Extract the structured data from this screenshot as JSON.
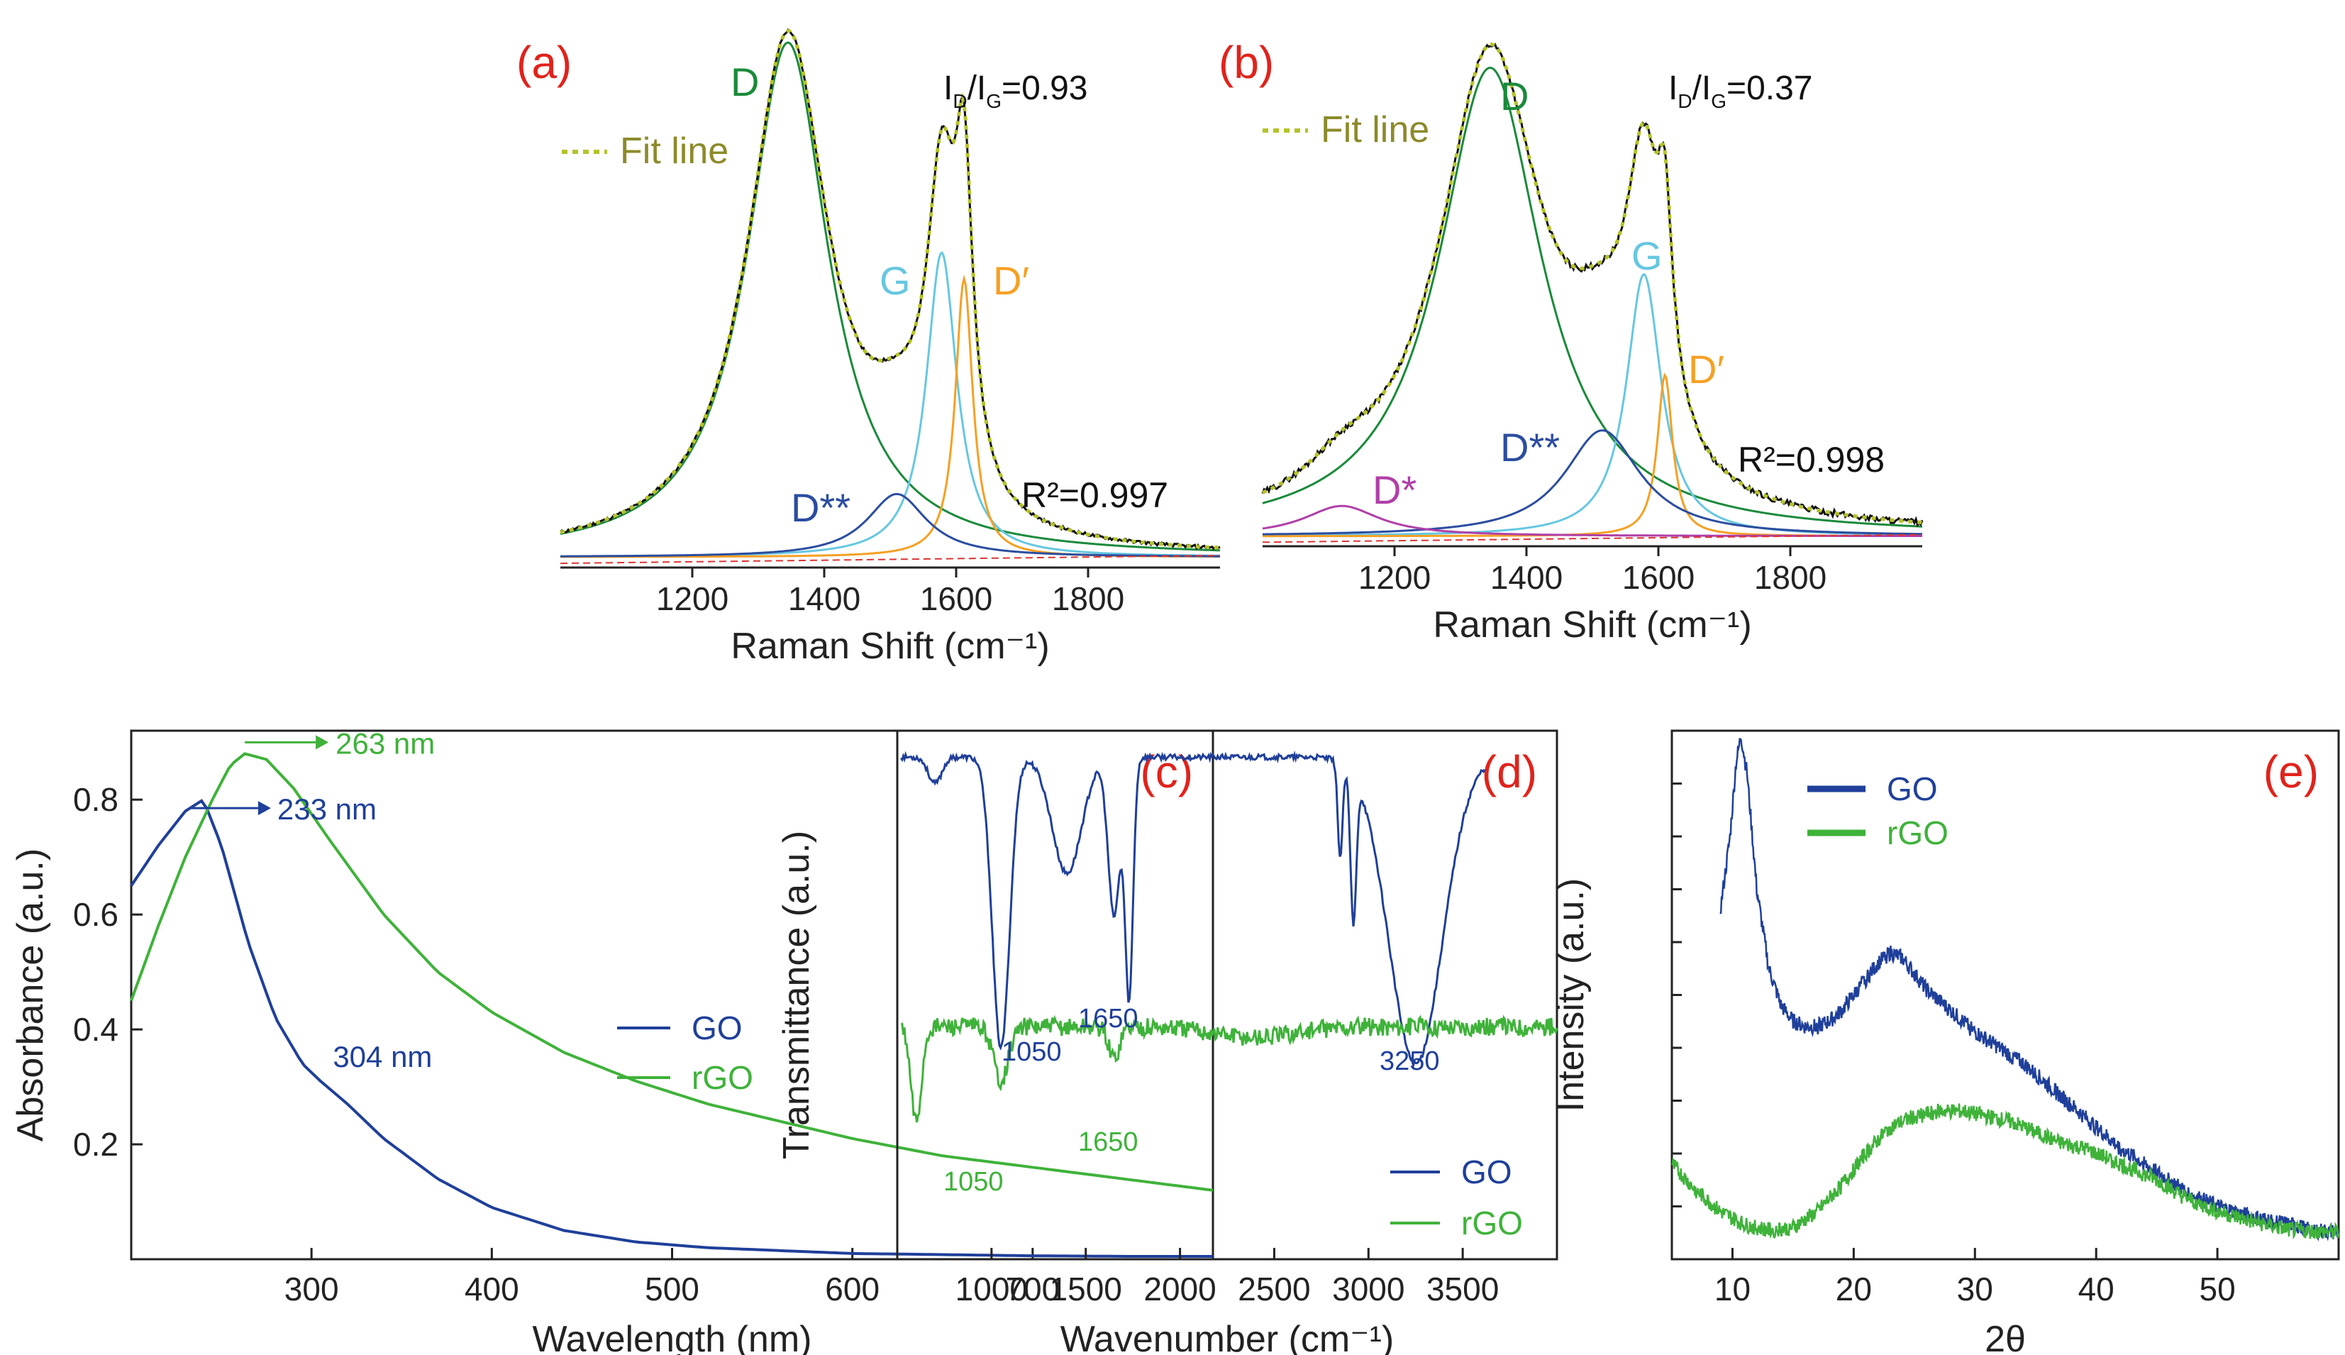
{
  "chart_data": [
    {
      "id": "a",
      "type": "line",
      "panel_label": "(a)",
      "xlabel": "Raman Shift (cm⁻¹)",
      "xlim": [
        1000,
        2000
      ],
      "xticks": [
        1200,
        1400,
        1600,
        1800
      ],
      "ylabel": "",
      "ylim": [
        0,
        1.0
      ],
      "legend": [
        {
          "name": "Fit line",
          "style": "dotted",
          "color": "#b5c22a"
        }
      ],
      "annotations": {
        "ratio": "I",
        "ratio_sub1": "D",
        "ratio_mid": "/I",
        "ratio_sub2": "G",
        "ratio_val": "=0.93",
        "r2": "R²=0.997"
      },
      "background": 0.02,
      "peaks": [
        {
          "name": "D",
          "center": 1345,
          "height": 0.98,
          "width": 75,
          "color": "#1a8a3a"
        },
        {
          "name": "G",
          "center": 1578,
          "height": 0.58,
          "width": 28,
          "color": "#66c7e0"
        },
        {
          "name": "D′",
          "center": 1612,
          "height": 0.53,
          "width": 16,
          "color": "#f5a024"
        },
        {
          "name": "D**",
          "center": 1510,
          "height": 0.12,
          "width": 55,
          "color": "#2b4da0"
        }
      ]
    },
    {
      "id": "b",
      "type": "line",
      "panel_label": "(b)",
      "xlabel": "Raman Shift (cm⁻¹)",
      "xlim": [
        1000,
        2000
      ],
      "xticks": [
        1200,
        1400,
        1600,
        1800
      ],
      "ylabel": "",
      "ylim": [
        0,
        1.0
      ],
      "legend": [
        {
          "name": "Fit line",
          "style": "dotted",
          "color": "#b5c22a"
        }
      ],
      "annotations": {
        "ratio": "I",
        "ratio_sub1": "D",
        "ratio_mid": "/I",
        "ratio_sub2": "G",
        "ratio_val": "=0.37",
        "r2": "R²=0.998"
      },
      "background": 0.02,
      "peaks": [
        {
          "name": "D",
          "center": 1345,
          "height": 0.93,
          "width": 95,
          "color": "#1a8a3a"
        },
        {
          "name": "G",
          "center": 1578,
          "height": 0.52,
          "width": 32,
          "color": "#66c7e0"
        },
        {
          "name": "D′",
          "center": 1610,
          "height": 0.32,
          "width": 14,
          "color": "#f5a024"
        },
        {
          "name": "D**",
          "center": 1515,
          "height": 0.21,
          "width": 70,
          "color": "#2b4da0"
        },
        {
          "name": "D*",
          "center": 1120,
          "height": 0.06,
          "width": 70,
          "color": "#b03fa8"
        }
      ]
    },
    {
      "id": "c",
      "type": "line",
      "panel_label": "(c)",
      "xlabel": "Wavelength (nm)",
      "ylabel": "Absorbance (a.u.)",
      "xlim": [
        200,
        800
      ],
      "ylim": [
        0,
        0.92
      ],
      "xticks": [
        300,
        400,
        500,
        600,
        700
      ],
      "yticks": [
        0.2,
        0.4,
        0.6,
        0.8
      ],
      "series": [
        {
          "name": "GO",
          "color": "#1f3f9a",
          "x": [
            200,
            215,
            230,
            240,
            250,
            265,
            280,
            295,
            305,
            320,
            340,
            370,
            400,
            440,
            480,
            520,
            560,
            600,
            650,
            700,
            750,
            800
          ],
          "y": [
            0.65,
            0.72,
            0.78,
            0.8,
            0.72,
            0.55,
            0.42,
            0.34,
            0.31,
            0.27,
            0.21,
            0.14,
            0.09,
            0.05,
            0.03,
            0.02,
            0.015,
            0.01,
            0.008,
            0.006,
            0.005,
            0.005
          ]
        },
        {
          "name": "rGO",
          "color": "#3fb23a",
          "x": [
            200,
            215,
            230,
            245,
            255,
            263,
            275,
            290,
            310,
            340,
            370,
            400,
            440,
            480,
            520,
            560,
            600,
            650,
            700,
            750,
            800
          ],
          "y": [
            0.45,
            0.58,
            0.7,
            0.8,
            0.86,
            0.88,
            0.87,
            0.82,
            0.73,
            0.6,
            0.5,
            0.43,
            0.36,
            0.31,
            0.27,
            0.24,
            0.21,
            0.18,
            0.16,
            0.14,
            0.12
          ]
        }
      ],
      "annotations": [
        {
          "text": "263 nm",
          "x": 263,
          "y": 0.88,
          "color": "#3fb23a"
        },
        {
          "text": "233 nm",
          "x": 233,
          "y": 0.8,
          "color": "#1f3f9a"
        },
        {
          "text": "304 nm",
          "x": 304,
          "y": 0.31,
          "color": "#1f3f9a"
        }
      ]
    },
    {
      "id": "d",
      "type": "line",
      "panel_label": "(d)",
      "xlabel": "Wavenumber (cm⁻¹)",
      "ylabel": "Transmittance (a.u.)",
      "xlim": [
        500,
        4000
      ],
      "ylim": [
        0,
        1.0
      ],
      "xticks": [
        1000,
        1500,
        2000,
        2500,
        3000,
        3500
      ],
      "series": [
        {
          "name": "GO",
          "color": "#1f3f9a",
          "baseline": 0.95,
          "dips": [
            [
              1050,
              0.55,
              65
            ],
            [
              1400,
              0.22,
              110
            ],
            [
              1730,
              0.45,
              30
            ],
            [
              1650,
              0.3,
              45
            ],
            [
              2850,
              0.18,
              18
            ],
            [
              2920,
              0.28,
              22
            ],
            [
              3250,
              0.58,
              200
            ],
            [
              700,
              0.05,
              50
            ]
          ]
        },
        {
          "name": "rGO",
          "color": "#3fb23a",
          "baseline": 0.44,
          "dips": [
            [
              1050,
              0.1,
              55
            ],
            [
              1650,
              0.06,
              40
            ],
            [
              600,
              0.18,
              40
            ],
            [
              2400,
              0.02,
              300
            ]
          ]
        }
      ],
      "annotations": [
        {
          "text": "1050",
          "x": 1050,
          "color": "#1f3f9a",
          "series": "GO"
        },
        {
          "text": "1650",
          "x": 1650,
          "color": "#1f3f9a",
          "series": "GO"
        },
        {
          "text": "3250",
          "x": 3250,
          "color": "#1f3f9a",
          "series": "GO"
        },
        {
          "text": "1050",
          "x": 1050,
          "color": "#3fb23a",
          "series": "rGO"
        },
        {
          "text": "1650",
          "x": 1650,
          "color": "#3fb23a",
          "series": "rGO"
        }
      ]
    },
    {
      "id": "e",
      "type": "line",
      "panel_label": "(e)",
      "xlabel": "2θ",
      "ylabel": "Intensity (a.u.)",
      "xlim": [
        5,
        60
      ],
      "ylim": [
        0,
        1.0
      ],
      "xticks": [
        10,
        20,
        30,
        40,
        50
      ],
      "series": [
        {
          "name": "GO",
          "color": "#1f3f9a",
          "x": [
            9,
            9.8,
            10.3,
            10.7,
            11.2,
            12,
            13,
            14,
            15,
            16,
            17,
            18,
            19,
            20,
            21,
            22,
            23,
            24,
            25,
            26,
            28,
            30,
            32,
            34,
            36,
            38,
            40,
            42,
            44,
            46,
            48,
            50,
            52,
            54,
            56,
            58,
            60
          ],
          "y": [
            0.66,
            0.8,
            0.94,
            0.99,
            0.92,
            0.7,
            0.55,
            0.48,
            0.45,
            0.44,
            0.44,
            0.45,
            0.47,
            0.5,
            0.53,
            0.56,
            0.58,
            0.57,
            0.54,
            0.51,
            0.47,
            0.43,
            0.4,
            0.37,
            0.33,
            0.29,
            0.25,
            0.21,
            0.18,
            0.15,
            0.12,
            0.1,
            0.085,
            0.075,
            0.065,
            0.055,
            0.05
          ]
        },
        {
          "name": "rGO",
          "color": "#3fb23a",
          "x": [
            5,
            7,
            9,
            11,
            13,
            15,
            17,
            19,
            21,
            23,
            25,
            27,
            29,
            31,
            33,
            35,
            37,
            39,
            41,
            43,
            45,
            47,
            50,
            53,
            56,
            60
          ],
          "y": [
            0.18,
            0.13,
            0.09,
            0.065,
            0.055,
            0.06,
            0.09,
            0.14,
            0.2,
            0.25,
            0.27,
            0.28,
            0.28,
            0.27,
            0.26,
            0.24,
            0.22,
            0.21,
            0.19,
            0.17,
            0.15,
            0.12,
            0.09,
            0.07,
            0.055,
            0.05
          ]
        }
      ]
    }
  ]
}
